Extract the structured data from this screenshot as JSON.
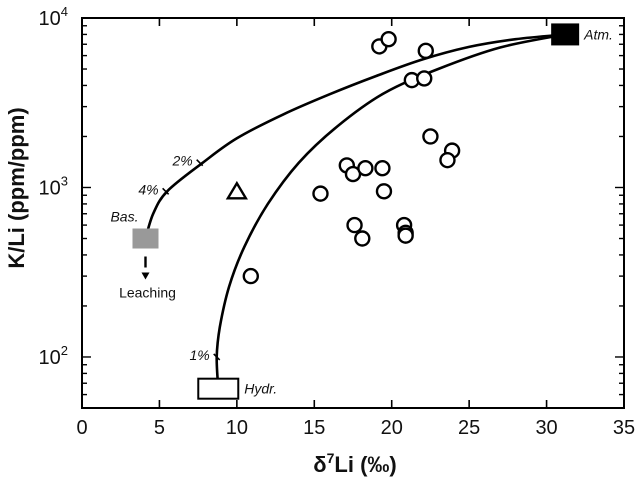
{
  "chart_data": {
    "type": "scatter",
    "xlabel_prefix": "δ",
    "xlabel_sup": "7",
    "xlabel_main": "Li (‰)",
    "ylabel": "K/Li (ppm/ppm)",
    "xlim": [
      0,
      35
    ],
    "ylim": [
      50,
      10000
    ],
    "y_scale": "log",
    "x_ticks": [
      0,
      5,
      10,
      15,
      20,
      25,
      30,
      35
    ],
    "y_ticks": [
      {
        "value": 100,
        "base": "10",
        "exp": "2"
      },
      {
        "value": 1000,
        "base": "10",
        "exp": "3"
      },
      {
        "value": 10000,
        "base": "10",
        "exp": "4"
      }
    ],
    "points": [
      {
        "x": 19.2,
        "y": 6800
      },
      {
        "x": 19.8,
        "y": 7500
      },
      {
        "x": 22.2,
        "y": 6400
      },
      {
        "x": 21.3,
        "y": 4300
      },
      {
        "x": 22.1,
        "y": 4400
      },
      {
        "x": 22.5,
        "y": 2000
      },
      {
        "x": 23.9,
        "y": 1650
      },
      {
        "x": 23.6,
        "y": 1450
      },
      {
        "x": 17.1,
        "y": 1350
      },
      {
        "x": 17.5,
        "y": 1200
      },
      {
        "x": 18.3,
        "y": 1300
      },
      {
        "x": 19.4,
        "y": 1300
      },
      {
        "x": 19.5,
        "y": 950
      },
      {
        "x": 15.4,
        "y": 920
      },
      {
        "x": 17.6,
        "y": 600
      },
      {
        "x": 18.1,
        "y": 500
      },
      {
        "x": 20.8,
        "y": 600
      },
      {
        "x": 20.9,
        "y": 540
      },
      {
        "x": 20.9,
        "y": 520
      },
      {
        "x": 10.9,
        "y": 300
      }
    ],
    "triangle_point": {
      "x": 10.0,
      "y": 950
    },
    "endmembers": [
      {
        "name": "Atm.",
        "x": 31.2,
        "y": 8000,
        "fill": "#000000"
      },
      {
        "name": "Bas.",
        "x": 4.1,
        "y": 500,
        "fill": "#999999"
      },
      {
        "name": "Hydr.",
        "x": 8.8,
        "y": 65,
        "fill": "#ffffff"
      }
    ],
    "mixing_curve_bas_atm": [
      [
        4.1,
        500
      ],
      [
        4.6,
        700
      ],
      [
        5.5,
        950
      ],
      [
        7.8,
        1400
      ],
      [
        10.0,
        1950
      ],
      [
        13.0,
        2700
      ],
      [
        16.0,
        3550
      ],
      [
        19.0,
        4550
      ],
      [
        22.0,
        5700
      ],
      [
        25.0,
        6750
      ],
      [
        28.0,
        7500
      ],
      [
        31.2,
        8000
      ]
    ],
    "mixing_curve_hydr_atm": [
      [
        8.8,
        65
      ],
      [
        8.7,
        100
      ],
      [
        8.9,
        150
      ],
      [
        9.5,
        260
      ],
      [
        10.5,
        450
      ],
      [
        12.0,
        800
      ],
      [
        14.0,
        1400
      ],
      [
        16.5,
        2300
      ],
      [
        19.5,
        3600
      ],
      [
        23.0,
        5000
      ],
      [
        27.0,
        6700
      ],
      [
        31.2,
        8000
      ]
    ],
    "curve_marks": [
      {
        "label": "2%",
        "x": 7.6,
        "y": 1400
      },
      {
        "label": "4%",
        "x": 5.4,
        "y": 950
      },
      {
        "label": "1%",
        "x": 8.7,
        "y": 100
      }
    ],
    "leaching_label": "Leaching"
  },
  "colors": {
    "axis": "#000000",
    "bas_fill": "#999999",
    "atm_fill": "#000000",
    "hydr_fill": "#ffffff"
  }
}
